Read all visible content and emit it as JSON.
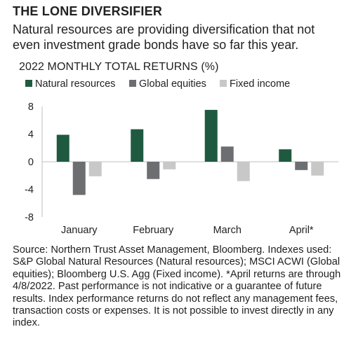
{
  "header": {
    "title": "THE LONE DIVERSIFIER",
    "subtitle": "Natural resources are providing diversification that not even investment grade bonds have so far this year."
  },
  "chart_data": {
    "type": "bar",
    "title": "2022 MONTHLY TOTAL RETURNS (%)",
    "categories": [
      "January",
      "February",
      "March",
      "April*"
    ],
    "series": [
      {
        "name": "Natural resources",
        "values": [
          3.9,
          4.7,
          7.5,
          1.8
        ],
        "color": "#1f5a40"
      },
      {
        "name": "Global equities",
        "values": [
          -4.8,
          -2.5,
          2.2,
          -1.2
        ],
        "color": "#6d6e71"
      },
      {
        "name": "Fixed income",
        "values": [
          -2.1,
          -1.1,
          -2.8,
          -2.0
        ],
        "color": "#c8c8c8"
      }
    ],
    "yticks": [
      8,
      4,
      0,
      -4,
      -8
    ],
    "ylim": [
      -8,
      8
    ],
    "legend_position": "top",
    "grid": false
  },
  "footer": {
    "source": "Source: Northern Trust Asset Management, Bloomberg. Indexes used: S&P Global Natural Resources (Natural resources); MSCI ACWI (Global equities); Bloomberg U.S. Agg (Fixed income). *April returns are through 4/8/2022. Past performance is not indicative or a guarantee of future results. Index performance returns do not reflect any management fees, transaction costs or expenses. It is not possible to invest directly in any index."
  }
}
